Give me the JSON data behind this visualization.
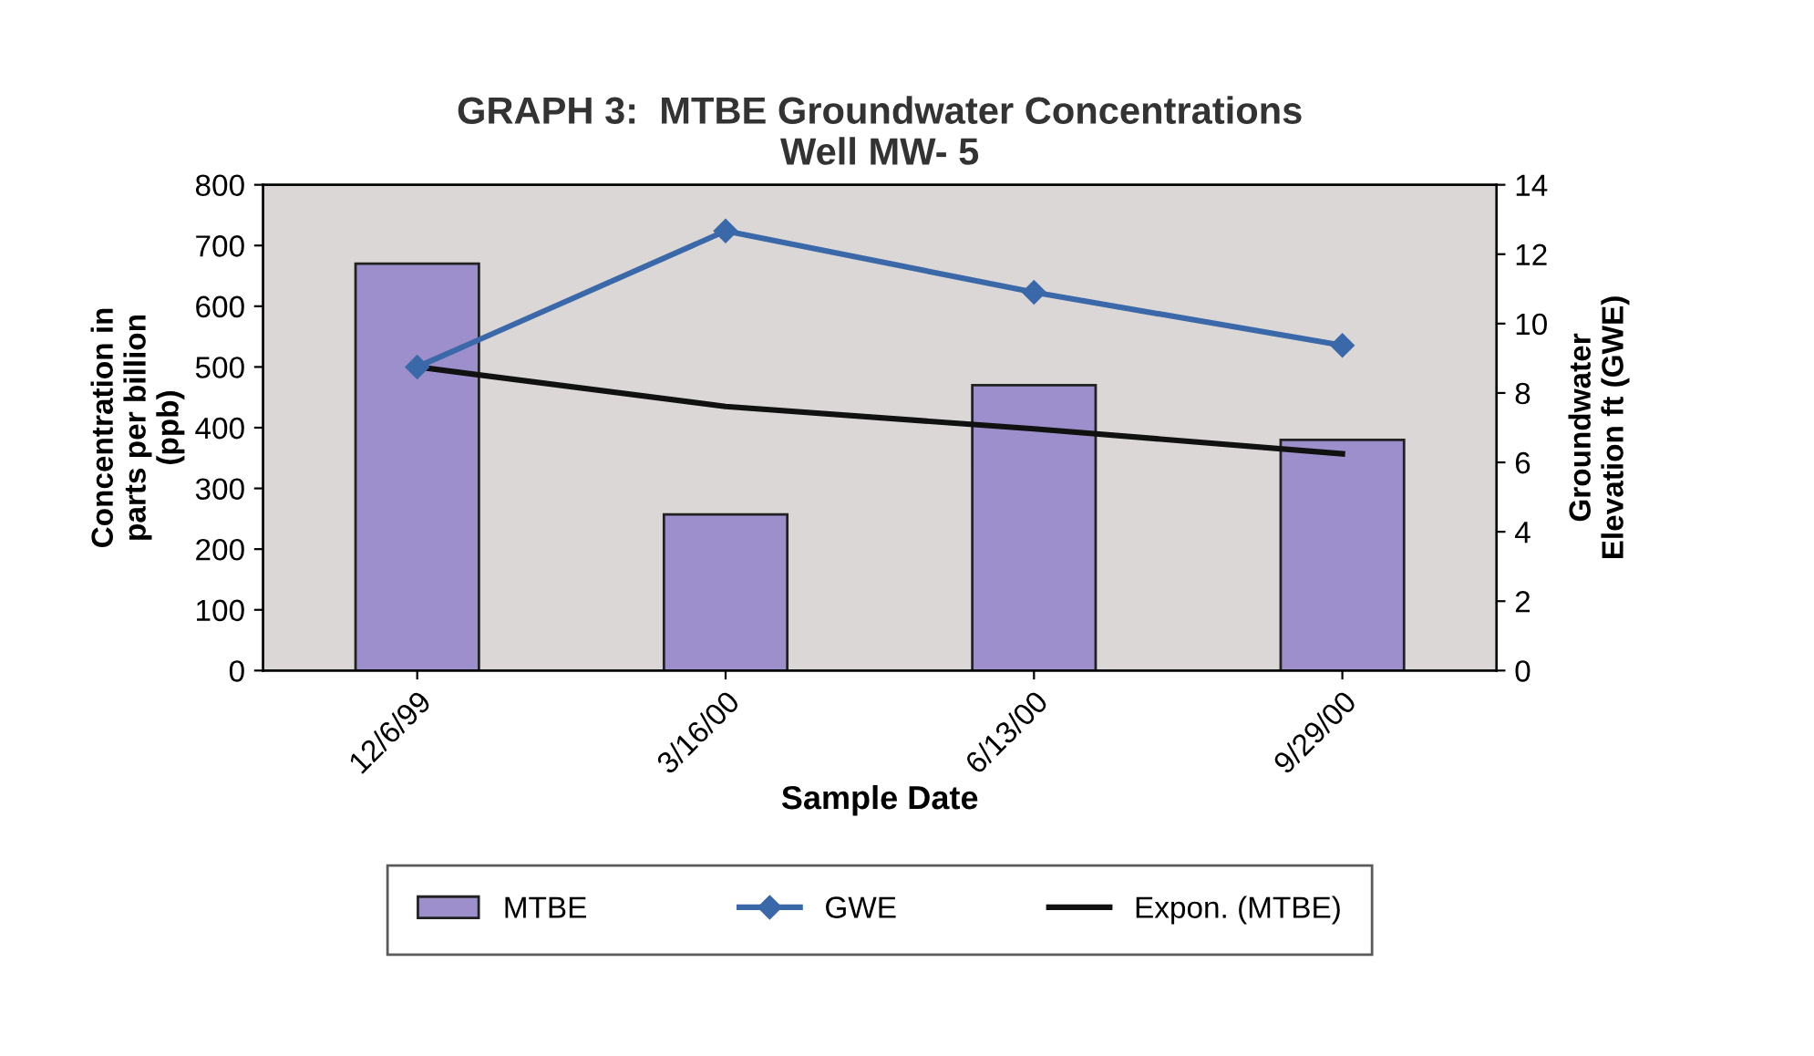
{
  "chart_data": {
    "type": "bar",
    "title": "GRAPH 3:  MTBE Groundwater Concentrations\nWell MW- 5",
    "xlabel": "Sample Date",
    "ylabel": "Concentration in\nparts per billion\n(ppb)",
    "y2label": "Groundwater\nElevation ft (GWE)",
    "categories": [
      "12/6/99",
      "3/16/00",
      "6/13/00",
      "9/29/00"
    ],
    "series": [
      {
        "name": "MTBE",
        "color": "#9d8fcb",
        "values": [
          670,
          257,
          470,
          380
        ]
      },
      {
        "name": "GWE",
        "type": "line",
        "axis": "y2",
        "color": "#3a68a8",
        "marker": "diamond",
        "values": [
          8.75,
          12.67,
          10.9,
          9.37
        ]
      },
      {
        "name": "Expon. (MTBE)",
        "type": "line",
        "color": "#111111",
        "marker": "none",
        "values": [
          500,
          435,
          398,
          357
        ]
      }
    ],
    "ylim": [
      0,
      800
    ],
    "yticks": [
      0,
      100,
      200,
      300,
      400,
      500,
      600,
      700,
      800
    ],
    "y2lim": [
      0,
      14
    ],
    "y2ticks": [
      0,
      2,
      4,
      6,
      8,
      10,
      12,
      14
    ],
    "grid": false,
    "legend": "bottom"
  }
}
